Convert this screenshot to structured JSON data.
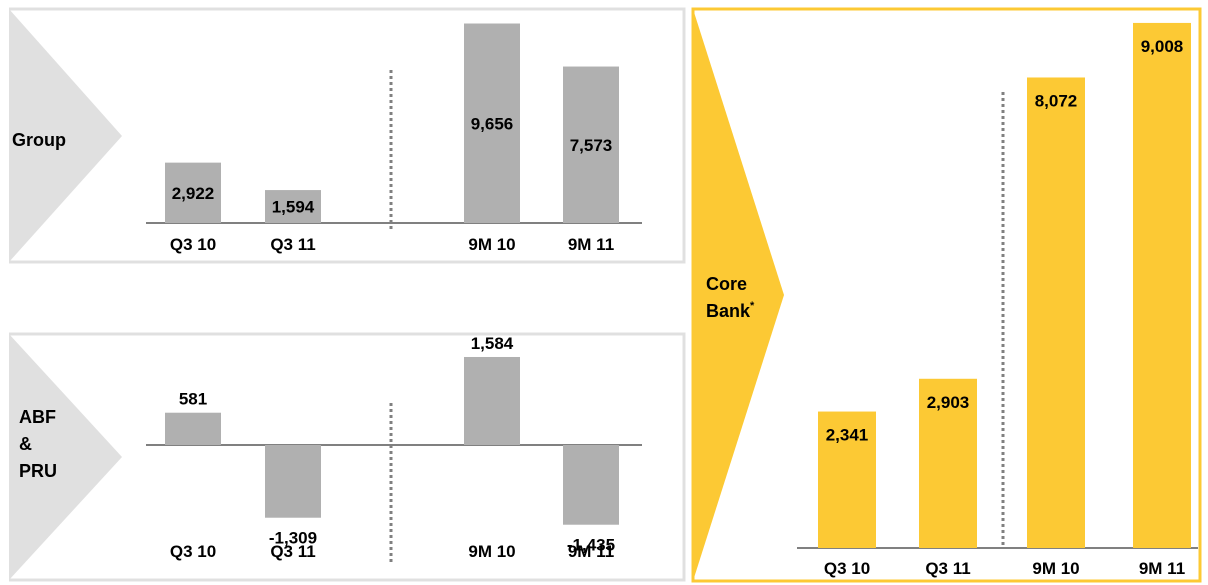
{
  "colors": {
    "grey_bar": "#b0b0b0",
    "grey_frame": "#e0e0e0",
    "yellow": "#fcc934",
    "dotted": "#808080"
  },
  "chart_data": [
    {
      "type": "bar",
      "segment": "Group",
      "categories": [
        "Q3 10",
        "Q3 11",
        "9M 10",
        "9M 11"
      ],
      "values": [
        2922,
        1594,
        9656,
        7573
      ],
      "value_labels": [
        "2,922",
        "1,594",
        "9,656",
        "7,573"
      ],
      "color": "#b0b0b0"
    },
    {
      "type": "bar",
      "segment": "ABF & PRU",
      "segment_lines": [
        "ABF",
        "&",
        "PRU"
      ],
      "categories": [
        "Q3 10",
        "Q3 11",
        "9M 10",
        "9M 11"
      ],
      "values": [
        581,
        -1309,
        1584,
        -1435
      ],
      "value_labels": [
        "581",
        "-1,309",
        "1,584",
        "-1,435"
      ],
      "color": "#b0b0b0"
    },
    {
      "type": "bar",
      "segment": "Core Bank",
      "segment_lines": [
        "Core",
        "Bank"
      ],
      "segment_footnote": "*",
      "categories": [
        "Q3 10",
        "Q3 11",
        "9M 10",
        "9M 11"
      ],
      "values": [
        2341,
        2903,
        8072,
        9008
      ],
      "value_labels": [
        "2,341",
        "2,903",
        "8,072",
        "9,008"
      ],
      "color": "#fcc934"
    }
  ]
}
